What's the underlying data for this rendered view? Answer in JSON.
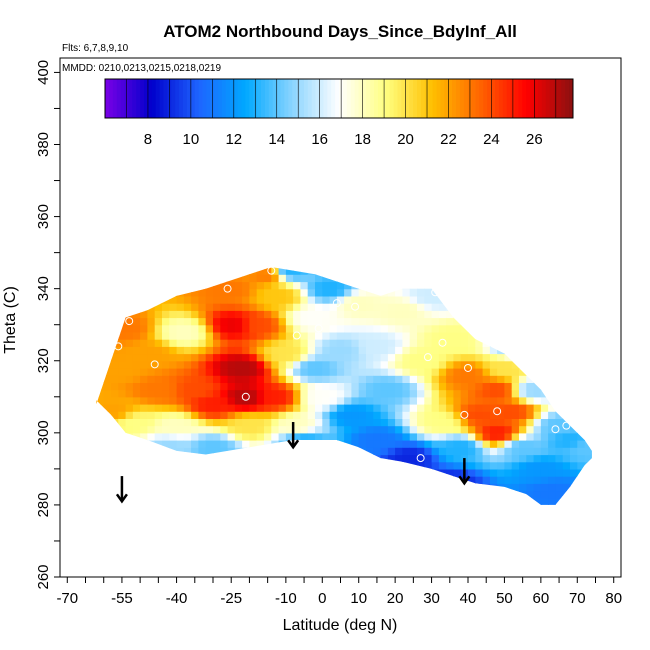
{
  "chart_data": {
    "type": "heatmap",
    "title": "ATOM2 Northbound Days_Since_BdyInf_All",
    "notes": [
      "Flts: 6,7,8,9,10",
      "MMDD: 0210,0213,0215,0218,0219"
    ],
    "xlabel": "Latitude (deg N)",
    "ylabel": "Theta (C)",
    "xlim": [
      -72,
      82
    ],
    "ylim": [
      260,
      404
    ],
    "x_ticks": [
      -70,
      -55,
      -40,
      -25,
      -10,
      0,
      10,
      20,
      30,
      40,
      50,
      60,
      70,
      80
    ],
    "x_tick_labels": [
      "-70",
      "-55",
      "-40",
      "-25",
      "-10",
      "0",
      "10",
      "20",
      "30",
      "40",
      "50",
      "60",
      "70",
      "80"
    ],
    "y_ticks": [
      260,
      280,
      300,
      320,
      340,
      360,
      380,
      400
    ],
    "y_tick_labels": [
      "260",
      "280",
      "300",
      "320",
      "340",
      "360",
      "380",
      "400"
    ],
    "colorbar": {
      "range": [
        6,
        27.8
      ],
      "ticks": [
        8,
        10,
        12,
        14,
        16,
        18,
        20,
        22,
        24,
        26
      ],
      "tick_labels": [
        "8",
        "10",
        "12",
        "14",
        "16",
        "18",
        "20",
        "22",
        "24",
        "26"
      ],
      "colors": [
        "#7a00e6",
        "#0000cc",
        "#1e64ff",
        "#00a8ff",
        "#8ad4ff",
        "#ffffff",
        "#ffff80",
        "#ffbf00",
        "#ff6600",
        "#ff0000",
        "#8b1010"
      ]
    },
    "field": {
      "points": [
        {
          "lat": -57,
          "theta": 306,
          "value": 22
        },
        {
          "lat": -55,
          "theta": 318,
          "value": 22
        },
        {
          "lat": -54,
          "theta": 329,
          "value": 23
        },
        {
          "lat": -52,
          "theta": 303,
          "value": 19
        },
        {
          "lat": -48,
          "theta": 322,
          "value": 22
        },
        {
          "lat": -45,
          "theta": 312,
          "value": 23
        },
        {
          "lat": -42,
          "theta": 296,
          "value": 15
        },
        {
          "lat": -40,
          "theta": 302,
          "value": 18
        },
        {
          "lat": -38,
          "theta": 328,
          "value": 18
        },
        {
          "lat": -35,
          "theta": 312,
          "value": 24
        },
        {
          "lat": -30,
          "theta": 308,
          "value": 25
        },
        {
          "lat": -30,
          "theta": 296,
          "value": 14
        },
        {
          "lat": -25,
          "theta": 340,
          "value": 23
        },
        {
          "lat": -24,
          "theta": 330,
          "value": 26
        },
        {
          "lat": -22,
          "theta": 318,
          "value": 27
        },
        {
          "lat": -21,
          "theta": 310,
          "value": 27
        },
        {
          "lat": -20,
          "theta": 302,
          "value": 20
        },
        {
          "lat": -18,
          "theta": 330,
          "value": 24
        },
        {
          "lat": -15,
          "theta": 344,
          "value": 23
        },
        {
          "lat": -13,
          "theta": 310,
          "value": 25
        },
        {
          "lat": -12,
          "theta": 338,
          "value": 21
        },
        {
          "lat": -10,
          "theta": 322,
          "value": 20
        },
        {
          "lat": -9,
          "theta": 345,
          "value": 13
        },
        {
          "lat": -7,
          "theta": 302,
          "value": 18
        },
        {
          "lat": -5,
          "theta": 298,
          "value": 13
        },
        {
          "lat": -3,
          "theta": 332,
          "value": 17
        },
        {
          "lat": -2,
          "theta": 318,
          "value": 14
        },
        {
          "lat": 0,
          "theta": 310,
          "value": 17
        },
        {
          "lat": 2,
          "theta": 340,
          "value": 13
        },
        {
          "lat": 5,
          "theta": 323,
          "value": 15
        },
        {
          "lat": 8,
          "theta": 305,
          "value": 12
        },
        {
          "lat": 10,
          "theta": 336,
          "value": 18
        },
        {
          "lat": 15,
          "theta": 298,
          "value": 11
        },
        {
          "lat": 15,
          "theta": 324,
          "value": 16
        },
        {
          "lat": 18,
          "theta": 312,
          "value": 14
        },
        {
          "lat": 22,
          "theta": 334,
          "value": 18
        },
        {
          "lat": 24,
          "theta": 293,
          "value": 9
        },
        {
          "lat": 27,
          "theta": 320,
          "value": 19
        },
        {
          "lat": 30,
          "theta": 338,
          "value": 16
        },
        {
          "lat": 33,
          "theta": 303,
          "value": 19
        },
        {
          "lat": 35,
          "theta": 286,
          "value": 9
        },
        {
          "lat": 36,
          "theta": 326,
          "value": 19
        },
        {
          "lat": 38,
          "theta": 296,
          "value": 13
        },
        {
          "lat": 40,
          "theta": 316,
          "value": 23
        },
        {
          "lat": 43,
          "theta": 305,
          "value": 24
        },
        {
          "lat": 48,
          "theta": 300,
          "value": 25
        },
        {
          "lat": 48,
          "theta": 312,
          "value": 24
        },
        {
          "lat": 50,
          "theta": 318,
          "value": 20
        },
        {
          "lat": 52,
          "theta": 306,
          "value": 24
        },
        {
          "lat": 53,
          "theta": 324,
          "value": 15
        },
        {
          "lat": 55,
          "theta": 296,
          "value": 14
        },
        {
          "lat": 58,
          "theta": 312,
          "value": 15
        },
        {
          "lat": 60,
          "theta": 290,
          "value": 12
        },
        {
          "lat": 63,
          "theta": 284,
          "value": 11
        },
        {
          "lat": 65,
          "theta": 302,
          "value": 14
        },
        {
          "lat": 68,
          "theta": 298,
          "value": 13
        },
        {
          "lat": 72,
          "theta": 296,
          "value": 14
        }
      ],
      "envelope": [
        {
          "lat": -62,
          "top": 308,
          "bottom": 309
        },
        {
          "lat": -58,
          "top": 320,
          "bottom": 305
        },
        {
          "lat": -54,
          "top": 332,
          "bottom": 300
        },
        {
          "lat": -48,
          "top": 334,
          "bottom": 298
        },
        {
          "lat": -40,
          "top": 338,
          "bottom": 295
        },
        {
          "lat": -32,
          "top": 340,
          "bottom": 294
        },
        {
          "lat": -26,
          "top": 342,
          "bottom": 295
        },
        {
          "lat": -20,
          "top": 344,
          "bottom": 296
        },
        {
          "lat": -14,
          "top": 346,
          "bottom": 297
        },
        {
          "lat": -8,
          "top": 345,
          "bottom": 298
        },
        {
          "lat": -2,
          "top": 344,
          "bottom": 298
        },
        {
          "lat": 4,
          "top": 342,
          "bottom": 298
        },
        {
          "lat": 10,
          "top": 340,
          "bottom": 296
        },
        {
          "lat": 16,
          "top": 338,
          "bottom": 293
        },
        {
          "lat": 22,
          "top": 340,
          "bottom": 292
        },
        {
          "lat": 30,
          "top": 340,
          "bottom": 290
        },
        {
          "lat": 36,
          "top": 332,
          "bottom": 288
        },
        {
          "lat": 42,
          "top": 326,
          "bottom": 286
        },
        {
          "lat": 50,
          "top": 322,
          "bottom": 285
        },
        {
          "lat": 56,
          "top": 316,
          "bottom": 283
        },
        {
          "lat": 60,
          "top": 312,
          "bottom": 280
        },
        {
          "lat": 64,
          "top": 306,
          "bottom": 280
        },
        {
          "lat": 68,
          "top": 302,
          "bottom": 285
        },
        {
          "lat": 72,
          "top": 298,
          "bottom": 291
        },
        {
          "lat": 74,
          "top": 295,
          "bottom": 293
        }
      ]
    },
    "markers": [
      {
        "lat": -53,
        "theta": 331
      },
      {
        "lat": -56,
        "theta": 324
      },
      {
        "lat": -46,
        "theta": 319
      },
      {
        "lat": -26,
        "theta": 340
      },
      {
        "lat": -14,
        "theta": 345
      },
      {
        "lat": -21,
        "theta": 310
      },
      {
        "lat": -7,
        "theta": 327
      },
      {
        "lat": -1,
        "theta": 329
      },
      {
        "lat": 4,
        "theta": 336
      },
      {
        "lat": 9,
        "theta": 335
      },
      {
        "lat": 31,
        "theta": 339
      },
      {
        "lat": 33,
        "theta": 325
      },
      {
        "lat": 29,
        "theta": 321
      },
      {
        "lat": 40,
        "theta": 318
      },
      {
        "lat": 39,
        "theta": 305
      },
      {
        "lat": 48,
        "theta": 306
      },
      {
        "lat": 27,
        "theta": 293
      },
      {
        "lat": 64,
        "theta": 301
      },
      {
        "lat": 67,
        "theta": 302
      }
    ],
    "arrows": [
      {
        "lat": -55,
        "theta_from": 288,
        "theta_to": 281
      },
      {
        "lat": -8,
        "theta_from": 303,
        "theta_to": 296
      },
      {
        "lat": 39,
        "theta_from": 293,
        "theta_to": 286
      }
    ]
  }
}
